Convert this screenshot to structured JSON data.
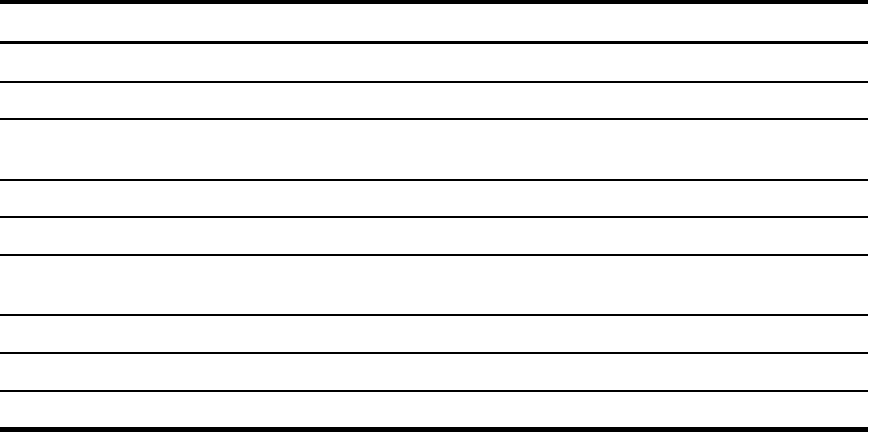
{
  "table": {
    "header": [],
    "rows": [],
    "rule_color": "#000000"
  }
}
